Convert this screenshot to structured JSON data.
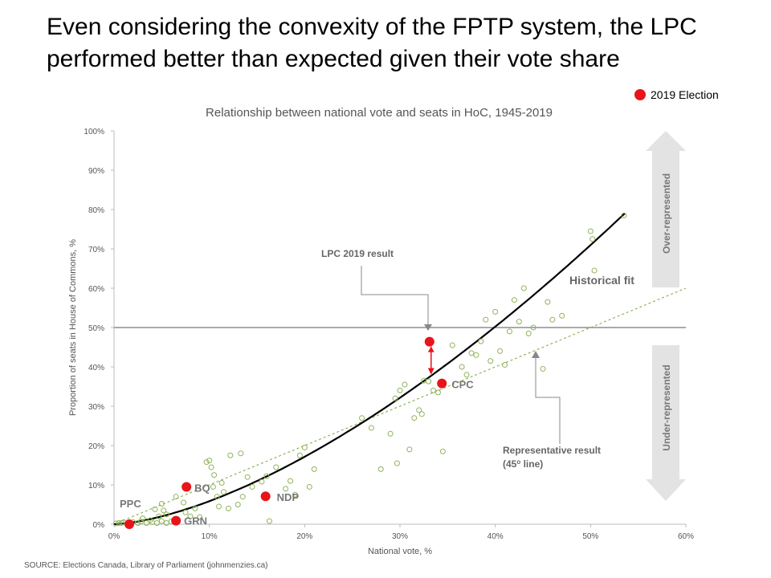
{
  "headline": "Even considering the convexity of the FPTP system, the LPC performed better than expected given their vote share",
  "legend": {
    "label": "2019 Election",
    "color": "#e8141a"
  },
  "source": "SOURCE:  Elections Canada, Library of Parliament (johnmenzies.ca)",
  "colors": {
    "fit": "#000000",
    "historical": "#8fb35a",
    "highlight": "#e8141a",
    "annotation": "#666666",
    "arrow_band": "#e3e3e3"
  },
  "chart_data": {
    "type": "scatter",
    "title": "Relationship between national vote and seats in HoC, 1945-2019",
    "xlabel": "National vote, %",
    "ylabel": "Proportion of seats in House of Commons, %",
    "xlim": [
      0,
      60
    ],
    "ylim": [
      0,
      100
    ],
    "xticks": [
      0,
      10,
      20,
      30,
      40,
      50,
      60
    ],
    "yticks": [
      0,
      10,
      20,
      30,
      40,
      50,
      60,
      70,
      80,
      90,
      100
    ],
    "x_tick_labels": [
      "0%",
      "10%",
      "20%",
      "30%",
      "40%",
      "50%",
      "60%"
    ],
    "y_tick_labels": [
      "0%",
      "10%",
      "20%",
      "30%",
      "40%",
      "50%",
      "60%",
      "70%",
      "80%",
      "90%",
      "100%"
    ],
    "majority_line": 50,
    "historical_points": [
      [
        0.2,
        0.2
      ],
      [
        0.5,
        0.3
      ],
      [
        0.8,
        0.3
      ],
      [
        1.0,
        0.5
      ],
      [
        1.5,
        0.3
      ],
      [
        1.8,
        0.2
      ],
      [
        2.0,
        0.5
      ],
      [
        2.5,
        0.3
      ],
      [
        2.8,
        0.7
      ],
      [
        3.0,
        1.5
      ],
      [
        3.4,
        0.3
      ],
      [
        3.8,
        1.0
      ],
      [
        4.0,
        0.5
      ],
      [
        4.5,
        0.3
      ],
      [
        4.7,
        2.0
      ],
      [
        5.0,
        0.8
      ],
      [
        5.2,
        3.5
      ],
      [
        5.5,
        0.3
      ],
      [
        6.0,
        0.7
      ],
      [
        4.3,
        3.8
      ],
      [
        5.0,
        5.2
      ],
      [
        5.5,
        2.5
      ],
      [
        6.5,
        7.0
      ],
      [
        7.3,
        5.5
      ],
      [
        7.5,
        3.0
      ],
      [
        8.0,
        2.0
      ],
      [
        8.5,
        4.0
      ],
      [
        9.0,
        1.8
      ],
      [
        9.7,
        15.8
      ],
      [
        10.0,
        16.2
      ],
      [
        10.2,
        14.5
      ],
      [
        10.5,
        12.5
      ],
      [
        10.4,
        9.5
      ],
      [
        10.8,
        7.0
      ],
      [
        11.0,
        4.5
      ],
      [
        11.5,
        8.2
      ],
      [
        11.3,
        10.5
      ],
      [
        12.0,
        4.0
      ],
      [
        12.2,
        17.5
      ],
      [
        13.0,
        5.0
      ],
      [
        13.3,
        18.0
      ],
      [
        13.5,
        7.0
      ],
      [
        14.0,
        12.0
      ],
      [
        14.5,
        9.5
      ],
      [
        15.5,
        10.8
      ],
      [
        16.0,
        12.2
      ],
      [
        16.3,
        0.8
      ],
      [
        17.0,
        14.5
      ],
      [
        18.0,
        9.0
      ],
      [
        18.5,
        11.0
      ],
      [
        19.0,
        7.5
      ],
      [
        19.5,
        17.5
      ],
      [
        20.0,
        19.5
      ],
      [
        20.5,
        9.5
      ],
      [
        21.0,
        14.0
      ],
      [
        26.0,
        27.0
      ],
      [
        27.0,
        24.5
      ],
      [
        28.0,
        14.0
      ],
      [
        29.0,
        23.0
      ],
      [
        29.5,
        32.0
      ],
      [
        30.0,
        34.0
      ],
      [
        29.7,
        15.5
      ],
      [
        30.5,
        35.5
      ],
      [
        31.0,
        19.0
      ],
      [
        31.5,
        27.0
      ],
      [
        32.0,
        29.0
      ],
      [
        32.3,
        28.0
      ],
      [
        32.5,
        36.5
      ],
      [
        33.0,
        36.3
      ],
      [
        33.5,
        34.0
      ],
      [
        34.0,
        33.5
      ],
      [
        34.5,
        18.5
      ],
      [
        35.5,
        45.5
      ],
      [
        36.5,
        40.0
      ],
      [
        37.0,
        38.0
      ],
      [
        37.5,
        43.5
      ],
      [
        38.0,
        43.0
      ],
      [
        38.5,
        46.5
      ],
      [
        39.0,
        52.0
      ],
      [
        39.5,
        41.5
      ],
      [
        40.0,
        54.0
      ],
      [
        40.5,
        44.0
      ],
      [
        41.0,
        40.5
      ],
      [
        41.5,
        49.0
      ],
      [
        42.0,
        57.0
      ],
      [
        42.5,
        51.5
      ],
      [
        43.0,
        60.0
      ],
      [
        43.5,
        48.5
      ],
      [
        44.0,
        50.0
      ],
      [
        45.0,
        39.5
      ],
      [
        45.5,
        56.5
      ],
      [
        46.0,
        52.0
      ],
      [
        47.0,
        53.0
      ],
      [
        50.0,
        74.5
      ],
      [
        50.2,
        72.5
      ],
      [
        50.4,
        64.5
      ],
      [
        53.5,
        78.5
      ]
    ],
    "elections_2019": [
      {
        "party": "PPC",
        "vote": 1.6,
        "seats": 0.0
      },
      {
        "party": "GRN",
        "vote": 6.5,
        "seats": 0.9
      },
      {
        "party": "BQ",
        "vote": 7.6,
        "seats": 9.5
      },
      {
        "party": "NDP",
        "vote": 15.9,
        "seats": 7.1
      },
      {
        "party": "CPC",
        "vote": 34.4,
        "seats": 35.8
      },
      {
        "party": "LPC",
        "vote": 33.1,
        "seats": 46.4
      }
    ],
    "annotations": {
      "lpc_result": "LPC 2019 result",
      "historical_fit": "Historical fit",
      "representative_line1": "Representative result",
      "representative_line2_a": "(45",
      "representative_line2_sup": "o",
      "representative_line2_b": " line)",
      "over": "Over-represented",
      "under": "Under-represented"
    }
  }
}
